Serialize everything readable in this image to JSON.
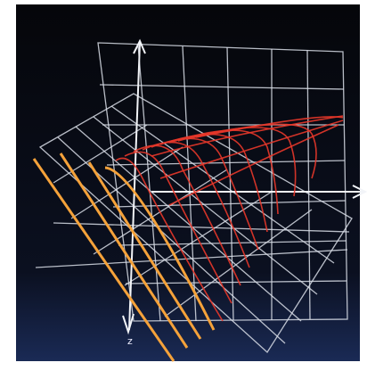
{
  "axis_label": "z"
}
